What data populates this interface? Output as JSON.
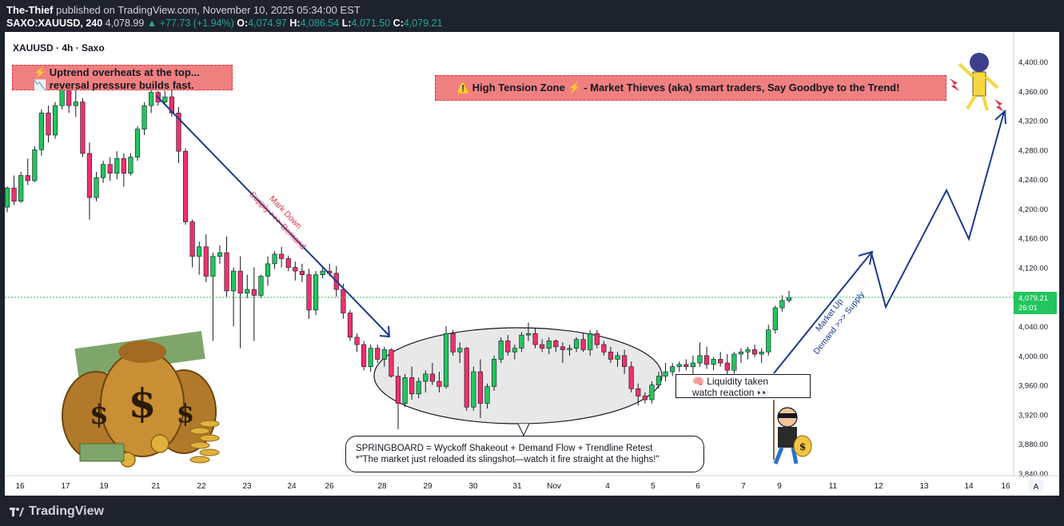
{
  "header": {
    "author": "The-Thief",
    "published": "published on TradingView.com, November 10, 2025 05:34:00 EST",
    "symbol": "SAXO:XAUUSD, 240",
    "last": "4,078.99",
    "change": "+77.73 (+1.94%)",
    "open_label": "O:",
    "open": "4,074.97",
    "high_label": "H:",
    "high": "4,086.54",
    "low_label": "L:",
    "low": "4,071.50",
    "close_label": "C:",
    "close": "4,079.21"
  },
  "legend": {
    "title": "XAUUSD · 4h · Saxo"
  },
  "annotations": {
    "top_left_line1": "⚡ Uptrend overheats at the top...",
    "top_left_line2": "📉 reversal pressure builds fast.",
    "high_tension": "⚠️ High Tension Zone ⚡ - Market Thieves (aka) smart traders, Say Goodbye to the Trend!",
    "markdown_line1": "Mark Down",
    "markdown_line2": "Supply >>> Demand",
    "markup_line1": "Market Up",
    "markup_line2": "Demand >>> Supply",
    "liquidity_line1": "🧠 Liquidity taken",
    "liquidity_line2": "watch reaction 👀",
    "springboard_line1": "SPRINGBOARD = Wyckoff Shakeout + Demand Flow + Trendline Retest",
    "springboard_line2": "*\"The market just reloaded its slingshot—watch it fire straight at the highs!\""
  },
  "price_tag": {
    "value": "4,079.21",
    "countdown": "26:01"
  },
  "footer": {
    "brand": "TradingView",
    "auto_button": "A"
  },
  "colors": {
    "up": "#22c55e",
    "down": "#f2306a",
    "arrow": "#1b3a8c",
    "callout": "#f08080",
    "last_price": "#22c55e"
  },
  "chart_data": {
    "type": "candlestick",
    "ylim": [
      3830,
      4420
    ],
    "y_ticks": [
      4400,
      4360,
      4320,
      4280,
      4240,
      4200,
      4160,
      4120,
      4080,
      4040,
      4000,
      3960,
      3920,
      3880,
      3840
    ],
    "y_tick_labels": [
      "4,400.00",
      "4,360.00",
      "4,320.00",
      "4,280.00",
      "4,240.00",
      "4,200.00",
      "4,160.00",
      "4,120.00",
      "4,080.00",
      "4,040.00",
      "4,000.00",
      "3,960.00",
      "3,920.00",
      "3,880.00",
      "3,840.00"
    ],
    "x_tick_labels": [
      "16",
      "17",
      "19",
      "21",
      "22",
      "23",
      "24",
      "26",
      "28",
      "29",
      "30",
      "31",
      "Nov",
      "4",
      "5",
      "6",
      "7",
      "9",
      "11",
      "12",
      "13",
      "14",
      "16"
    ],
    "candles": [
      [
        4202,
        4230,
        4195,
        4228
      ],
      [
        4228,
        4245,
        4205,
        4210
      ],
      [
        4210,
        4250,
        4208,
        4245
      ],
      [
        4245,
        4268,
        4232,
        4238
      ],
      [
        4238,
        4285,
        4236,
        4280
      ],
      [
        4280,
        4335,
        4272,
        4330
      ],
      [
        4330,
        4340,
        4290,
        4300
      ],
      [
        4300,
        4345,
        4295,
        4340
      ],
      [
        4340,
        4370,
        4335,
        4365
      ],
      [
        4365,
        4370,
        4330,
        4340
      ],
      [
        4340,
        4362,
        4325,
        4345
      ],
      [
        4345,
        4350,
        4270,
        4275
      ],
      [
        4275,
        4290,
        4185,
        4215
      ],
      [
        4215,
        4250,
        4210,
        4242
      ],
      [
        4242,
        4265,
        4235,
        4260
      ],
      [
        4260,
        4270,
        4238,
        4248
      ],
      [
        4248,
        4278,
        4240,
        4268
      ],
      [
        4268,
        4275,
        4230,
        4248
      ],
      [
        4248,
        4275,
        4245,
        4270
      ],
      [
        4270,
        4312,
        4265,
        4308
      ],
      [
        4308,
        4345,
        4300,
        4340
      ],
      [
        4340,
        4362,
        4330,
        4358
      ],
      [
        4358,
        4360,
        4340,
        4345
      ],
      [
        4345,
        4360,
        4340,
        4352
      ],
      [
        4352,
        4362,
        4325,
        4330
      ],
      [
        4330,
        4338,
        4262,
        4278
      ],
      [
        4278,
        4282,
        4178,
        4182
      ],
      [
        4182,
        4185,
        4120,
        4135
      ],
      [
        4135,
        4155,
        4110,
        4148
      ],
      [
        4148,
        4165,
        4100,
        4108
      ],
      [
        4108,
        4140,
        4020,
        4135
      ],
      [
        4135,
        4150,
        4125,
        4140
      ],
      [
        4140,
        4162,
        4080,
        4088
      ],
      [
        4088,
        4120,
        4040,
        4115
      ],
      [
        4115,
        4135,
        4010,
        4085
      ],
      [
        4085,
        4110,
        4078,
        4090
      ],
      [
        4090,
        4120,
        4020,
        4082
      ],
      [
        4082,
        4110,
        4078,
        4108
      ],
      [
        4108,
        4135,
        4095,
        4125
      ],
      [
        4125,
        4142,
        4118,
        4138
      ],
      [
        4138,
        4148,
        4120,
        4132
      ],
      [
        4132,
        4136,
        4115,
        4120
      ],
      [
        4120,
        4128,
        4102,
        4115
      ],
      [
        4115,
        4125,
        4100,
        4110
      ],
      [
        4110,
        4118,
        4050,
        4062
      ],
      [
        4062,
        4115,
        4055,
        4110
      ],
      [
        4110,
        4122,
        4105,
        4115
      ],
      [
        4115,
        4125,
        4108,
        4112
      ],
      [
        4112,
        4122,
        4080,
        4090
      ],
      [
        4090,
        4098,
        4050,
        4058
      ],
      [
        4058,
        4062,
        4020,
        4025
      ],
      [
        4025,
        4030,
        4005,
        4015
      ],
      [
        4015,
        4020,
        3980,
        3985
      ],
      [
        3985,
        4015,
        3978,
        4010
      ],
      [
        4010,
        4015,
        3990,
        3995
      ],
      [
        3995,
        4012,
        3985,
        4008
      ],
      [
        4008,
        4010,
        3970,
        3972
      ],
      [
        3972,
        3985,
        3900,
        3935
      ],
      [
        3935,
        3975,
        3930,
        3970
      ],
      [
        3970,
        3985,
        3940,
        3948
      ],
      [
        3948,
        3970,
        3942,
        3965
      ],
      [
        3965,
        3980,
        3950,
        3975
      ],
      [
        3975,
        3990,
        3960,
        3965
      ],
      [
        3965,
        3978,
        3950,
        3958
      ],
      [
        3958,
        4040,
        3955,
        4030
      ],
      [
        4030,
        4035,
        4000,
        4005
      ],
      [
        4005,
        4018,
        3990,
        4010
      ],
      [
        4010,
        4012,
        3925,
        3930
      ],
      [
        3930,
        3985,
        3925,
        3978
      ],
      [
        3978,
        3995,
        3915,
        3935
      ],
      [
        3935,
        3962,
        3928,
        3958
      ],
      [
        3958,
        4000,
        3952,
        3995
      ],
      [
        3995,
        4025,
        3990,
        4020
      ],
      [
        4020,
        4028,
        4000,
        4005
      ],
      [
        4005,
        4015,
        3995,
        4010
      ],
      [
        4010,
        4032,
        4005,
        4028
      ],
      [
        4028,
        4045,
        4020,
        4030
      ],
      [
        4030,
        4038,
        4010,
        4015
      ],
      [
        4015,
        4022,
        4005,
        4010
      ],
      [
        4010,
        4025,
        4002,
        4020
      ],
      [
        4020,
        4022,
        4005,
        4012
      ],
      [
        4012,
        4018,
        3990,
        4008
      ],
      [
        4008,
        4015,
        4000,
        4010
      ],
      [
        4010,
        4025,
        4005,
        4022
      ],
      [
        4022,
        4030,
        4005,
        4008
      ],
      [
        4008,
        4035,
        4000,
        4030
      ],
      [
        4030,
        4035,
        4010,
        4015
      ],
      [
        4015,
        4020,
        4000,
        4005
      ],
      [
        4005,
        4012,
        3990,
        3995
      ],
      [
        3995,
        4005,
        3985,
        4000
      ],
      [
        4000,
        4008,
        3975,
        3985
      ],
      [
        3985,
        3992,
        3950,
        3955
      ],
      [
        3955,
        3962,
        3932,
        3945
      ],
      [
        3945,
        3950,
        3935,
        3940
      ],
      [
        3940,
        3965,
        3935,
        3960
      ],
      [
        3960,
        3978,
        3955,
        3972
      ],
      [
        3972,
        3990,
        3965,
        3978
      ],
      [
        3978,
        3990,
        3972,
        3985
      ],
      [
        3985,
        3992,
        3978,
        3988
      ],
      [
        3988,
        3995,
        3980,
        3985
      ],
      [
        3985,
        4000,
        3975,
        3990
      ],
      [
        3990,
        4018,
        3985,
        4000
      ],
      [
        4000,
        4012,
        3982,
        3988
      ],
      [
        3988,
        3998,
        3980,
        3995
      ],
      [
        3995,
        4005,
        3985,
        3990
      ],
      [
        3990,
        4002,
        3970,
        3980
      ],
      [
        3980,
        4005,
        3975,
        4002
      ],
      [
        4002,
        4010,
        3990,
        4005
      ],
      [
        4005,
        4012,
        3995,
        4008
      ],
      [
        4008,
        4015,
        3998,
        4002
      ],
      [
        4002,
        4010,
        3990,
        4005
      ],
      [
        4005,
        4042,
        4000,
        4035
      ],
      [
        4035,
        4068,
        4030,
        4065
      ],
      [
        4065,
        4082,
        4060,
        4075
      ],
      [
        4075,
        4088,
        4072,
        4079
      ]
    ],
    "last_price": 4079.21,
    "projection": [
      [
        4000,
        4000
      ],
      [
        4090,
        4140
      ],
      [
        4120,
        4075
      ],
      [
        4170,
        4225
      ],
      [
        4195,
        4160
      ],
      [
        4250,
        4335
      ]
    ]
  }
}
